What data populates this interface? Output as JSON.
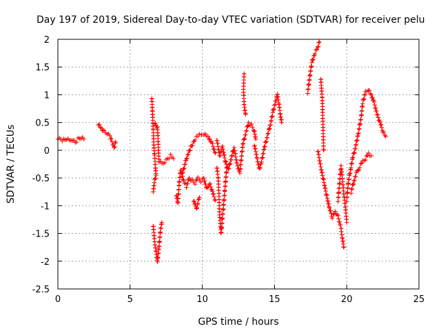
{
  "chart_data": {
    "type": "scatter",
    "title": "Day 197 of 2019, Sidereal Day-to-day VTEC variation (SDTVAR) for receiver pelu",
    "xlabel": "GPS time / hours",
    "ylabel": "SDTVAR / TECUs",
    "xlim": [
      0,
      25
    ],
    "ylim": [
      -2.5,
      2
    ],
    "x_ticks": [
      0,
      5,
      10,
      15,
      20,
      25
    ],
    "y_ticks": [
      -2.5,
      -2,
      -1.5,
      -1,
      -0.5,
      0,
      0.5,
      1,
      1.5,
      2
    ],
    "x_tick_labels": [
      "0",
      "5",
      "10",
      "15",
      "20",
      "25"
    ],
    "y_tick_labels": [
      "-2.5",
      "-2",
      "-1.5",
      "-1",
      "-0.5",
      "0",
      "0.5",
      "1",
      "1.5",
      "2"
    ],
    "grid": true,
    "marker": "+",
    "color": "#ff0000",
    "series": [
      {
        "name": "SDTVAR",
        "segments": [
          [
            [
              0.0,
              0.22
            ],
            [
              0.2,
              0.2
            ],
            [
              0.4,
              0.18
            ],
            [
              0.6,
              0.2
            ],
            [
              0.8,
              0.17
            ],
            [
              1.0,
              0.2
            ],
            [
              1.2,
              0.14
            ],
            [
              1.4,
              0.2
            ],
            [
              1.6,
              0.22
            ],
            [
              1.8,
              0.2
            ]
          ],
          [
            [
              2.8,
              0.48
            ],
            [
              3.0,
              0.4
            ],
            [
              3.2,
              0.33
            ],
            [
              3.4,
              0.3
            ],
            [
              3.6,
              0.25
            ],
            [
              3.8,
              0.12
            ],
            [
              3.9,
              0.05
            ],
            [
              4.0,
              0.15
            ]
          ],
          [
            [
              6.5,
              0.95
            ],
            [
              6.55,
              0.7
            ],
            [
              6.6,
              0.35
            ],
            [
              6.65,
              0.05
            ],
            [
              6.7,
              -0.1
            ],
            [
              6.75,
              -0.3
            ],
            [
              6.8,
              -0.45
            ],
            [
              6.7,
              -0.55
            ],
            [
              6.6,
              -0.75
            ]
          ],
          [
            [
              6.6,
              -1.35
            ],
            [
              6.7,
              -1.65
            ],
            [
              6.8,
              -1.85
            ],
            [
              6.9,
              -2.0
            ],
            [
              7.0,
              -1.75
            ],
            [
              7.1,
              -1.45
            ],
            [
              7.2,
              -1.3
            ]
          ],
          [
            [
              6.7,
              0.5
            ],
            [
              6.8,
              0.45
            ],
            [
              6.9,
              0.4
            ],
            [
              7.0,
              -0.2
            ],
            [
              7.2,
              -0.25
            ],
            [
              7.4,
              -0.2
            ],
            [
              7.6,
              -0.15
            ],
            [
              7.8,
              -0.1
            ],
            [
              8.0,
              -0.15
            ]
          ],
          [
            [
              8.2,
              -0.8
            ],
            [
              8.3,
              -0.95
            ],
            [
              8.4,
              -0.6
            ],
            [
              8.5,
              -0.35
            ],
            [
              8.7,
              -0.55
            ],
            [
              8.9,
              -0.65
            ],
            [
              9.1,
              -0.5
            ],
            [
              9.3,
              -0.55
            ],
            [
              9.5,
              -0.6
            ],
            [
              9.7,
              -0.5
            ],
            [
              9.9,
              -0.55
            ],
            [
              10.1,
              -0.5
            ],
            [
              10.3,
              -0.7
            ],
            [
              10.5,
              -0.6
            ],
            [
              10.7,
              -0.75
            ],
            [
              10.9,
              -0.9
            ]
          ],
          [
            [
              8.6,
              -0.45
            ],
            [
              8.9,
              -0.15
            ],
            [
              9.2,
              0.05
            ],
            [
              9.5,
              0.2
            ],
            [
              9.8,
              0.28
            ],
            [
              10.1,
              0.3
            ],
            [
              10.4,
              0.25
            ],
            [
              10.7,
              0.1
            ],
            [
              10.9,
              -0.05
            ]
          ],
          [
            [
              9.4,
              -0.9
            ],
            [
              9.6,
              -1.05
            ],
            [
              9.8,
              -0.85
            ]
          ],
          [
            [
              11.0,
              -0.3
            ],
            [
              11.1,
              -0.5
            ],
            [
              11.15,
              -0.8
            ],
            [
              11.2,
              -1.2
            ],
            [
              11.3,
              -1.5
            ],
            [
              11.4,
              -1.2
            ],
            [
              11.5,
              -0.9
            ],
            [
              11.6,
              -0.6
            ],
            [
              11.7,
              -0.3
            ]
          ],
          [
            [
              11.0,
              0.2
            ],
            [
              11.2,
              -0.1
            ],
            [
              11.4,
              0.05
            ],
            [
              11.6,
              -0.2
            ],
            [
              11.8,
              -0.35
            ],
            [
              12.0,
              -0.15
            ],
            [
              12.2,
              0.05
            ],
            [
              12.4,
              -0.25
            ],
            [
              12.6,
              -0.4
            ],
            [
              12.8,
              0.1
            ],
            [
              13.0,
              0.3
            ],
            [
              13.2,
              0.5
            ],
            [
              13.4,
              0.45
            ],
            [
              13.6,
              0.35
            ],
            [
              13.7,
              0.2
            ]
          ],
          [
            [
              12.9,
              1.4
            ],
            [
              12.85,
              1.1
            ],
            [
              12.9,
              0.8
            ],
            [
              13.0,
              0.65
            ]
          ],
          [
            [
              13.6,
              0.1
            ],
            [
              13.8,
              -0.15
            ],
            [
              13.95,
              -0.35
            ],
            [
              14.1,
              -0.2
            ],
            [
              14.3,
              0.05
            ],
            [
              14.5,
              0.25
            ],
            [
              14.7,
              0.45
            ],
            [
              14.9,
              0.7
            ],
            [
              15.1,
              0.9
            ],
            [
              15.2,
              1.0
            ],
            [
              15.3,
              0.85
            ],
            [
              15.4,
              0.65
            ],
            [
              15.5,
              0.5
            ]
          ],
          [
            [
              17.3,
              1.05
            ],
            [
              17.45,
              1.35
            ],
            [
              17.6,
              1.6
            ],
            [
              17.8,
              1.75
            ],
            [
              18.0,
              1.85
            ],
            [
              18.1,
              1.95
            ]
          ],
          [
            [
              18.2,
              1.3
            ],
            [
              18.3,
              0.95
            ],
            [
              18.35,
              0.5
            ],
            [
              18.4,
              0.0
            ]
          ],
          [
            [
              18.0,
              0.0
            ],
            [
              18.2,
              -0.3
            ],
            [
              18.4,
              -0.55
            ],
            [
              18.6,
              -0.8
            ],
            [
              18.8,
              -1.05
            ],
            [
              19.0,
              -1.2
            ],
            [
              19.2,
              -1.1
            ],
            [
              19.4,
              -1.2
            ],
            [
              19.6,
              -1.4
            ],
            [
              19.7,
              -1.6
            ],
            [
              19.8,
              -1.75
            ]
          ],
          [
            [
              19.4,
              -0.9
            ],
            [
              19.5,
              -0.6
            ],
            [
              19.6,
              -0.3
            ],
            [
              19.7,
              -0.5
            ],
            [
              19.8,
              -0.8
            ],
            [
              19.9,
              -1.0
            ],
            [
              20.0,
              -1.3
            ]
          ],
          [
            [
              20.0,
              -0.9
            ],
            [
              20.1,
              -0.6
            ],
            [
              20.2,
              -0.45
            ],
            [
              20.3,
              -0.3
            ],
            [
              20.4,
              -0.15
            ],
            [
              20.6,
              0.05
            ],
            [
              20.8,
              0.3
            ],
            [
              21.0,
              0.6
            ],
            [
              21.1,
              0.85
            ],
            [
              21.3,
              1.05
            ],
            [
              21.5,
              1.1
            ],
            [
              21.7,
              1.0
            ],
            [
              21.9,
              0.85
            ],
            [
              22.1,
              0.65
            ],
            [
              22.3,
              0.5
            ],
            [
              22.5,
              0.35
            ],
            [
              22.7,
              0.25
            ]
          ],
          [
            [
              20.3,
              -0.75
            ],
            [
              20.5,
              -0.55
            ],
            [
              20.7,
              -0.4
            ],
            [
              20.9,
              -0.3
            ],
            [
              21.1,
              -0.2
            ],
            [
              21.3,
              -0.15
            ],
            [
              21.5,
              -0.05
            ],
            [
              21.7,
              -0.1
            ]
          ]
        ]
      }
    ]
  }
}
